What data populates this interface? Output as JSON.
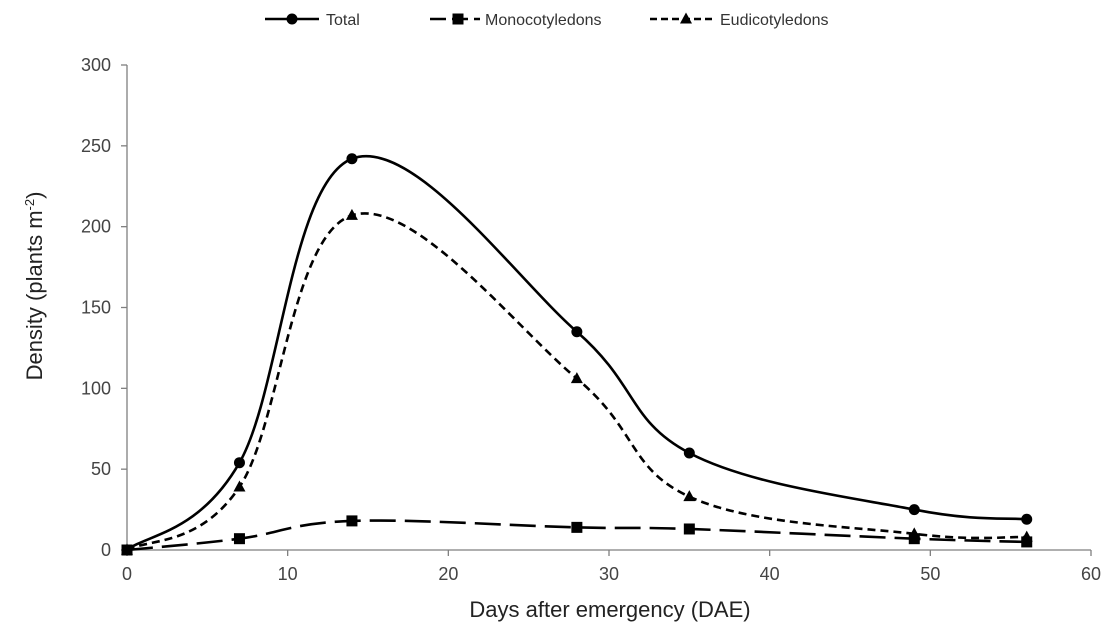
{
  "chart_data": {
    "type": "line",
    "xlabel": "Days after emergency (DAE)",
    "ylabel": "Density (plants m",
    "ylabel_sup": "-2",
    "ylabel_close": ")",
    "xlim": [
      0,
      60
    ],
    "ylim": [
      0,
      300
    ],
    "x_ticks": [
      0,
      10,
      20,
      30,
      40,
      50,
      60
    ],
    "y_ticks": [
      0,
      50,
      100,
      150,
      200,
      250,
      300
    ],
    "grid": false,
    "legend_position": "top",
    "x": [
      0,
      7,
      14,
      28,
      35,
      49,
      56
    ],
    "series": [
      {
        "name": "Total",
        "values": [
          0,
          54,
          242,
          135,
          60,
          25,
          19
        ],
        "marker": "circle",
        "line_style": "solid"
      },
      {
        "name": "Monocotyledons",
        "values": [
          0,
          7,
          18,
          14,
          13,
          7,
          5
        ],
        "marker": "square",
        "line_style": "long-dash"
      },
      {
        "name": "Eudicotyledons",
        "values": [
          0,
          39,
          207,
          106,
          33,
          10,
          8
        ],
        "marker": "triangle",
        "line_style": "short-dash"
      }
    ],
    "colors": {
      "line": "#000000",
      "axis": "#7f7f7f",
      "text": "#333333"
    }
  }
}
